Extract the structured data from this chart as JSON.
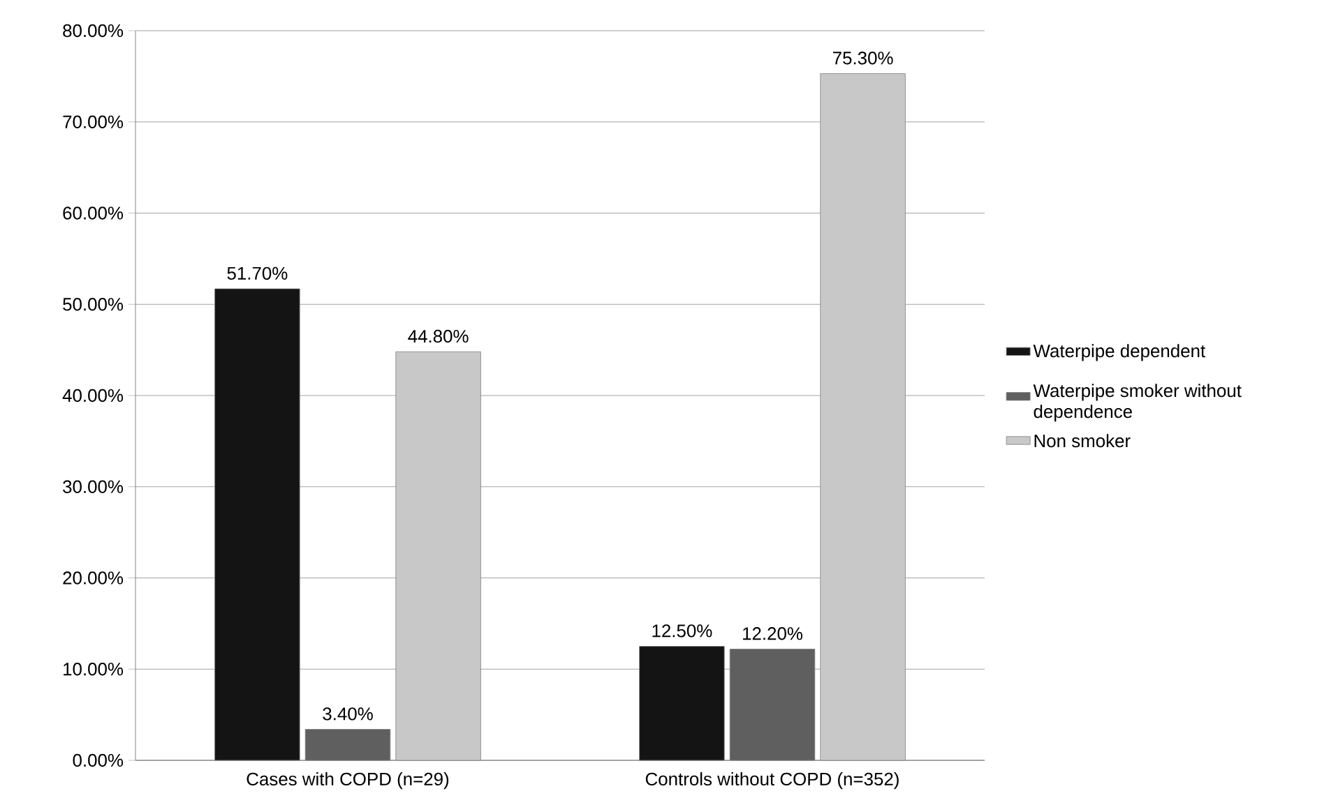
{
  "chart_data": {
    "type": "bar",
    "categories": [
      "Cases with COPD (n=29)",
      "Controls without COPD (n=352)"
    ],
    "series": [
      {
        "name": "Waterpipe dependent",
        "color": "#141414",
        "values": [
          51.7,
          12.5
        ],
        "value_labels": [
          "51.70%",
          "12.50%"
        ]
      },
      {
        "name": "Waterpipe smoker without dependence",
        "color": "#5f5f5f",
        "values": [
          3.4,
          12.2
        ],
        "value_labels": [
          "3.40%",
          "12.20%"
        ]
      },
      {
        "name": "Non smoker",
        "color": "#c8c8c8",
        "values": [
          44.8,
          75.3
        ],
        "value_labels": [
          "44.80%",
          "75.30%"
        ]
      }
    ],
    "ylim": [
      0,
      80
    ],
    "yticks": [
      {
        "value": 0,
        "label": "0.00%"
      },
      {
        "value": 10,
        "label": "10.00%"
      },
      {
        "value": 20,
        "label": "20.00%"
      },
      {
        "value": 30,
        "label": "30.00%"
      },
      {
        "value": 40,
        "label": "40.00%"
      },
      {
        "value": 50,
        "label": "50.00%"
      },
      {
        "value": 60,
        "label": "60.00%"
      },
      {
        "value": 70,
        "label": "70.00%"
      },
      {
        "value": 80,
        "label": "80.00%"
      }
    ],
    "grid": "y",
    "legend": "right"
  }
}
